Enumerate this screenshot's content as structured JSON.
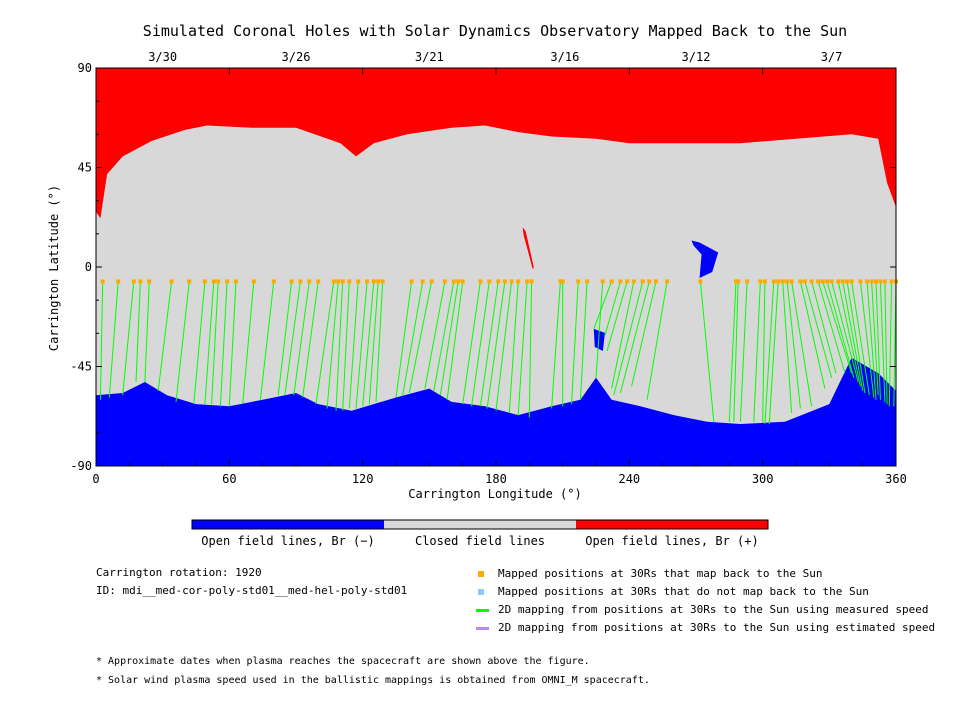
{
  "chart_data": {
    "type": "scatter",
    "title": "Simulated Coronal Holes with Solar Dynamics Observatory Mapped Back to the Sun",
    "xlabel": "Carrington Longitude (°)",
    "ylabel": "Carrington Latitude (°)",
    "xlim": [
      0,
      360
    ],
    "ylim": [
      -90,
      90
    ],
    "x_ticks": [
      "0",
      "60",
      "120",
      "180",
      "240",
      "300",
      "360"
    ],
    "y_ticks": [
      "90",
      "45",
      "0",
      "-45",
      "-90"
    ],
    "top_axis_dates": [
      {
        "label": "3/30",
        "lon": 30
      },
      {
        "label": "3/26",
        "lon": 90
      },
      {
        "label": "3/21",
        "lon": 150
      },
      {
        "label": "3/16",
        "lon": 211
      },
      {
        "label": "3/12",
        "lon": 270
      },
      {
        "label": "3/7",
        "lon": 331
      }
    ],
    "regions": {
      "north_open_positive": {
        "color": "#ff0000",
        "boundary_lat": [
          [
            0,
            25
          ],
          [
            2,
            22
          ],
          [
            5,
            42
          ],
          [
            12,
            50
          ],
          [
            25,
            57
          ],
          [
            40,
            62
          ],
          [
            50,
            64
          ],
          [
            70,
            63
          ],
          [
            90,
            63
          ],
          [
            110,
            56
          ],
          [
            117,
            50
          ],
          [
            125,
            56
          ],
          [
            140,
            60
          ],
          [
            160,
            63
          ],
          [
            175,
            64
          ],
          [
            190,
            61
          ],
          [
            205,
            59
          ],
          [
            225,
            58
          ],
          [
            240,
            56
          ],
          [
            260,
            56
          ],
          [
            290,
            56
          ],
          [
            315,
            58
          ],
          [
            340,
            60
          ],
          [
            352,
            58
          ],
          [
            356,
            38
          ],
          [
            360,
            27
          ]
        ]
      },
      "closed": {
        "color": "#d8d8d8"
      },
      "south_open_negative": {
        "color": "#0000ff",
        "boundary_lat": [
          [
            0,
            -58
          ],
          [
            12,
            -57
          ],
          [
            22,
            -52
          ],
          [
            32,
            -58
          ],
          [
            45,
            -62
          ],
          [
            60,
            -63
          ],
          [
            75,
            -60
          ],
          [
            90,
            -57
          ],
          [
            100,
            -62
          ],
          [
            115,
            -65
          ],
          [
            135,
            -59
          ],
          [
            150,
            -55
          ],
          [
            160,
            -61
          ],
          [
            175,
            -63
          ],
          [
            190,
            -67
          ],
          [
            205,
            -63
          ],
          [
            218,
            -60
          ],
          [
            225,
            -50
          ],
          [
            232,
            -60
          ],
          [
            245,
            -63
          ],
          [
            260,
            -67
          ],
          [
            275,
            -70
          ],
          [
            290,
            -71
          ],
          [
            310,
            -70
          ],
          [
            330,
            -62
          ],
          [
            340,
            -41
          ],
          [
            352,
            -48
          ],
          [
            360,
            -56
          ]
        ]
      },
      "small_features": [
        {
          "type": "positive",
          "lon": [
            192,
            197
          ],
          "lat": [
            -1,
            18
          ]
        },
        {
          "type": "negative",
          "lon": [
            268,
            280
          ],
          "lat": [
            -5,
            12
          ]
        },
        {
          "type": "negative",
          "lon": [
            224,
            229
          ],
          "lat": [
            -38,
            -28
          ]
        }
      ]
    },
    "mapped_points_lon": [
      3,
      10,
      17,
      20,
      24,
      34,
      42,
      49,
      53,
      55,
      59,
      63,
      71,
      80,
      88,
      92,
      96,
      100,
      107,
      109,
      111,
      114,
      118,
      122,
      125,
      127,
      129,
      142,
      147,
      151,
      157,
      161,
      163,
      165,
      173,
      177,
      181,
      184,
      187,
      190,
      194,
      196,
      209,
      210,
      217,
      221,
      228,
      232,
      236,
      239,
      242,
      246,
      249,
      252,
      257,
      272,
      288,
      289,
      293,
      299,
      301,
      305,
      307,
      309,
      311,
      313,
      317,
      319,
      322,
      325,
      327,
      329,
      331,
      334,
      336,
      338,
      340,
      344,
      347,
      349,
      351,
      353,
      355,
      358,
      360
    ],
    "mapped_points_lat": -6.5,
    "line_end_points": [
      {
        "lon": 2,
        "lat": -60
      },
      {
        "lon": 6,
        "lat": -59
      },
      {
        "lon": 12,
        "lat": -58
      },
      {
        "lon": 18,
        "lat": -52
      },
      {
        "lon": 22,
        "lat": -52
      },
      {
        "lon": 28,
        "lat": -56
      },
      {
        "lon": 36,
        "lat": -61
      },
      {
        "lon": 44,
        "lat": -62
      },
      {
        "lon": 49,
        "lat": -62
      },
      {
        "lon": 52,
        "lat": -62
      },
      {
        "lon": 56,
        "lat": -63
      },
      {
        "lon": 60,
        "lat": -63
      },
      {
        "lon": 66,
        "lat": -62
      },
      {
        "lon": 74,
        "lat": -60
      },
      {
        "lon": 82,
        "lat": -58
      },
      {
        "lon": 85,
        "lat": -58
      },
      {
        "lon": 89,
        "lat": -58
      },
      {
        "lon": 93,
        "lat": -59
      },
      {
        "lon": 99,
        "lat": -62
      },
      {
        "lon": 104,
        "lat": -64
      },
      {
        "lon": 108,
        "lat": -65
      },
      {
        "lon": 111,
        "lat": -65
      },
      {
        "lon": 114,
        "lat": -64
      },
      {
        "lon": 117,
        "lat": -64
      },
      {
        "lon": 120,
        "lat": -63
      },
      {
        "lon": 123,
        "lat": -62
      },
      {
        "lon": 126,
        "lat": -61
      },
      {
        "lon": 135,
        "lat": -59
      },
      {
        "lon": 138,
        "lat": -58
      },
      {
        "lon": 141,
        "lat": -57
      },
      {
        "lon": 148,
        "lat": -55
      },
      {
        "lon": 152,
        "lat": -56
      },
      {
        "lon": 155,
        "lat": -58
      },
      {
        "lon": 158,
        "lat": -60
      },
      {
        "lon": 165,
        "lat": -62
      },
      {
        "lon": 169,
        "lat": -63
      },
      {
        "lon": 173,
        "lat": -63
      },
      {
        "lon": 176,
        "lat": -64
      },
      {
        "lon": 180,
        "lat": -65
      },
      {
        "lon": 186,
        "lat": -66
      },
      {
        "lon": 190,
        "lat": -67
      },
      {
        "lon": 195,
        "lat": -68
      },
      {
        "lon": 205,
        "lat": -64
      },
      {
        "lon": 210,
        "lat": -63
      },
      {
        "lon": 214,
        "lat": -62
      },
      {
        "lon": 218,
        "lat": -60
      },
      {
        "lon": 225,
        "lat": -50
      },
      {
        "lon": 224,
        "lat": -28
      },
      {
        "lon": 229,
        "lat": -31
      },
      {
        "lon": 230,
        "lat": -38
      },
      {
        "lon": 232,
        "lat": -55
      },
      {
        "lon": 233,
        "lat": -58
      },
      {
        "lon": 236,
        "lat": -57
      },
      {
        "lon": 241,
        "lat": -54
      },
      {
        "lon": 248,
        "lat": -60
      },
      {
        "lon": 278,
        "lat": -70
      },
      {
        "lon": 285,
        "lat": -70
      },
      {
        "lon": 287,
        "lat": -70
      },
      {
        "lon": 290,
        "lat": -70
      },
      {
        "lon": 296,
        "lat": -70
      },
      {
        "lon": 300,
        "lat": -70
      },
      {
        "lon": 301,
        "lat": -71
      },
      {
        "lon": 303,
        "lat": -71
      },
      {
        "lon": 313,
        "lat": -66
      },
      {
        "lon": 317,
        "lat": -64
      },
      {
        "lon": 322,
        "lat": -63
      },
      {
        "lon": 328,
        "lat": -55
      },
      {
        "lon": 331,
        "lat": -50
      },
      {
        "lon": 333,
        "lat": -48
      },
      {
        "lon": 337,
        "lat": -48
      },
      {
        "lon": 340,
        "lat": -48
      },
      {
        "lon": 341,
        "lat": -50
      },
      {
        "lon": 343,
        "lat": -52
      },
      {
        "lon": 344,
        "lat": -54
      },
      {
        "lon": 345,
        "lat": -56
      },
      {
        "lon": 346,
        "lat": -57
      },
      {
        "lon": 348,
        "lat": -58
      },
      {
        "lon": 350,
        "lat": -59
      },
      {
        "lon": 351,
        "lat": -60
      },
      {
        "lon": 352,
        "lat": -58
      },
      {
        "lon": 353,
        "lat": -60
      },
      {
        "lon": 355,
        "lat": -61
      },
      {
        "lon": 356,
        "lat": -62
      },
      {
        "lon": 357,
        "lat": -63
      },
      {
        "lon": 359,
        "lat": -63
      }
    ],
    "colors": {
      "positive_open": "#ff0000",
      "closed": "#d8d8d8",
      "negative_open": "#0000ff",
      "mapped_point": "#ffaa00",
      "unmapped_point": "#88ccff",
      "measured_speed_line": "#00ff00",
      "estimated_speed_line": "#bb88ee"
    },
    "colorbar_labels": [
      "Open field lines, Br (−)",
      "Closed field lines",
      "Open field lines, Br (+)"
    ],
    "legend_placement": "bottom-right"
  },
  "info": {
    "carrington_rotation": "Carrington rotation: 1920",
    "id": "ID: mdi__med-cor-poly-std01__med-hel-poly-std01"
  },
  "legend": {
    "mapped": "Mapped positions at 30Rs that map back to the Sun",
    "unmapped": "Mapped positions at 30Rs that do not map back to the Sun",
    "measured": "2D mapping from positions at 30Rs to the Sun using measured speed",
    "estimated": "2D mapping from positions at 30Rs to the Sun using estimated speed"
  },
  "notes": {
    "note1": "* Approximate dates when plasma reaches the spacecraft are shown above the figure.",
    "note2": "* Solar wind plasma speed used in the ballistic mappings is obtained from OMNI_M spacecraft."
  }
}
